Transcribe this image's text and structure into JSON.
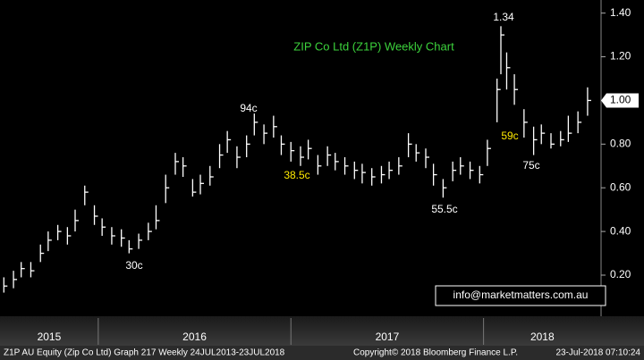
{
  "chart_data": {
    "type": "ohlc",
    "title": "ZIP Co Ltd (Z1P) Weekly Chart",
    "color": "#ffffff",
    "x": [
      2015.51,
      2015.56,
      2015.6,
      2015.65,
      2015.7,
      2015.74,
      2015.79,
      2015.84,
      2015.88,
      2015.93,
      2015.98,
      2016.02,
      2016.07,
      2016.12,
      2016.16,
      2016.21,
      2016.26,
      2016.3,
      2016.35,
      2016.4,
      2016.44,
      2016.49,
      2016.53,
      2016.58,
      2016.63,
      2016.67,
      2016.72,
      2016.77,
      2016.81,
      2016.86,
      2016.91,
      2016.95,
      2017.0,
      2017.05,
      2017.09,
      2017.14,
      2017.19,
      2017.23,
      2017.28,
      2017.33,
      2017.37,
      2017.42,
      2017.47,
      2017.51,
      2017.56,
      2017.61,
      2017.65,
      2017.7,
      2017.74,
      2017.79,
      2017.84,
      2017.88,
      2017.93,
      2017.98,
      2018.02,
      2018.07,
      2018.09,
      2018.12,
      2018.16,
      2018.21,
      2018.26,
      2018.3,
      2018.35,
      2018.4,
      2018.44,
      2018.49,
      2018.54
    ],
    "high": [
      0.19,
      0.22,
      0.26,
      0.26,
      0.34,
      0.4,
      0.43,
      0.42,
      0.5,
      0.61,
      0.52,
      0.46,
      0.42,
      0.41,
      0.36,
      0.39,
      0.44,
      0.52,
      0.66,
      0.76,
      0.74,
      0.64,
      0.66,
      0.7,
      0.8,
      0.86,
      0.79,
      0.84,
      0.94,
      0.89,
      0.93,
      0.84,
      0.81,
      0.79,
      0.82,
      0.75,
      0.79,
      0.76,
      0.74,
      0.72,
      0.71,
      0.69,
      0.7,
      0.72,
      0.74,
      0.85,
      0.8,
      0.78,
      0.71,
      0.64,
      0.72,
      0.74,
      0.72,
      0.7,
      0.82,
      1.1,
      1.34,
      1.22,
      1.12,
      0.96,
      0.88,
      0.89,
      0.85,
      0.86,
      0.93,
      0.95,
      1.06
    ],
    "low": [
      0.12,
      0.14,
      0.19,
      0.19,
      0.26,
      0.31,
      0.36,
      0.34,
      0.4,
      0.52,
      0.43,
      0.38,
      0.34,
      0.33,
      0.3,
      0.32,
      0.36,
      0.41,
      0.53,
      0.66,
      0.65,
      0.56,
      0.57,
      0.61,
      0.69,
      0.76,
      0.69,
      0.74,
      0.84,
      0.8,
      0.83,
      0.75,
      0.72,
      0.7,
      0.73,
      0.66,
      0.7,
      0.68,
      0.66,
      0.64,
      0.62,
      0.61,
      0.62,
      0.64,
      0.66,
      0.74,
      0.72,
      0.69,
      0.61,
      0.555,
      0.63,
      0.66,
      0.64,
      0.62,
      0.7,
      0.9,
      1.12,
      1.05,
      0.98,
      0.83,
      0.75,
      0.8,
      0.78,
      0.79,
      0.81,
      0.85,
      0.93
    ],
    "close": [
      0.15,
      0.18,
      0.23,
      0.22,
      0.3,
      0.36,
      0.4,
      0.38,
      0.45,
      0.58,
      0.47,
      0.42,
      0.38,
      0.37,
      0.32,
      0.36,
      0.4,
      0.45,
      0.6,
      0.72,
      0.7,
      0.58,
      0.62,
      0.65,
      0.75,
      0.82,
      0.74,
      0.8,
      0.9,
      0.85,
      0.88,
      0.8,
      0.77,
      0.74,
      0.78,
      0.7,
      0.75,
      0.72,
      0.7,
      0.68,
      0.67,
      0.65,
      0.66,
      0.68,
      0.7,
      0.8,
      0.76,
      0.74,
      0.66,
      0.6,
      0.68,
      0.7,
      0.68,
      0.66,
      0.78,
      1.05,
      1.3,
      1.15,
      1.05,
      0.9,
      0.82,
      0.85,
      0.8,
      0.82,
      0.85,
      0.9,
      1.0
    ],
    "xlim": [
      2015.49,
      2018.61
    ],
    "xticks": [
      2016,
      2017,
      2018
    ],
    "periods": [
      "2015",
      "2016",
      "2017",
      "2018"
    ],
    "ylim": [
      0.02,
      1.46
    ],
    "yticks": [
      {
        "value": 0.2,
        "label": "0.20"
      },
      {
        "value": 0.4,
        "label": "0.40"
      },
      {
        "value": 0.6,
        "label": "0.60"
      },
      {
        "value": 0.8,
        "label": "0.80"
      },
      {
        "value": 1.0,
        "label": "1.00"
      },
      {
        "value": 1.2,
        "label": "1.20"
      },
      {
        "value": 1.4,
        "label": "1.40"
      }
    ],
    "last_price": {
      "value": 1.0,
      "label": "1.00"
    },
    "annotations": [
      "1.34",
      "94c",
      "38.5c",
      "30c",
      "55.5c",
      "59c",
      "75c"
    ],
    "watermark": "info@marketmatters.com.au",
    "footer": [
      "Z1P AU Equity (Zip Co Ltd) Graph 217  Weekly 24JUL2013-23JUL2018",
      "Copyright© 2018 Bloomberg Finance L.P.",
      "23-Jul-2018 07:10:24"
    ]
  }
}
